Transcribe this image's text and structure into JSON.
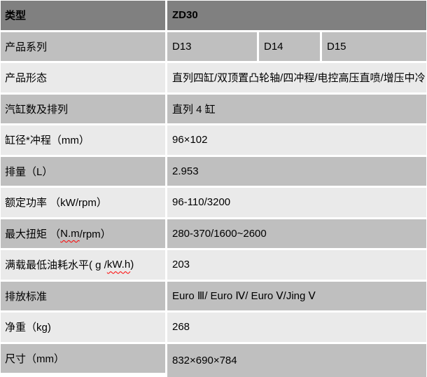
{
  "colors": {
    "header_row_bg": "#808080",
    "stripe_dark_bg": "#bfbfbf",
    "stripe_light_bg": "#eaeaea",
    "divider": "#ffffff",
    "text": "#000000",
    "spellcheck_underline": "#ff0000"
  },
  "table": {
    "rows": [
      {
        "label": "类型",
        "cells": [
          "ZD30"
        ],
        "bg": "header",
        "bold": true
      },
      {
        "label": "产品系列",
        "cells": [
          "D13",
          "D14",
          "D15"
        ],
        "bg": "dark"
      },
      {
        "label": "产品形态",
        "cells": [
          "直列四缸/双顶置凸轮轴/四冲程/电控高压直喷/增压中冷"
        ],
        "bg": "light"
      },
      {
        "label": "汽缸数及排列",
        "cells": [
          "直列 4 缸"
        ],
        "bg": "dark"
      },
      {
        "label": "缸径*冲程（mm）",
        "cells": [
          "96×102"
        ],
        "bg": "light"
      },
      {
        "label": "排量（L）",
        "cells": [
          "2.953"
        ],
        "bg": "dark"
      },
      {
        "label": "额定功率 （kW/rpm）",
        "cells": [
          "96-110/3200"
        ],
        "bg": "light"
      },
      {
        "label_pre": "最大扭矩 （",
        "label_wavy": "N.m",
        "label_post": "/rpm）",
        "cells": [
          "280-370/1600~2600"
        ],
        "bg": "dark"
      },
      {
        "label_pre": "满载最低油耗水平( g / ",
        "label_wavy": "kW.h",
        "label_post": " )",
        "cells": [
          "203"
        ],
        "bg": "light"
      },
      {
        "label": "排放标准",
        "cells": [
          "Euro Ⅲ/ Euro Ⅳ/ Euro Ⅴ/Jing Ⅴ"
        ],
        "bg": "dark"
      },
      {
        "label": "净重（kg)",
        "cells": [
          "268"
        ],
        "bg": "light"
      },
      {
        "label": "尺寸（mm）",
        "cells": [
          "832×690×784"
        ],
        "bg": "dark"
      }
    ]
  }
}
